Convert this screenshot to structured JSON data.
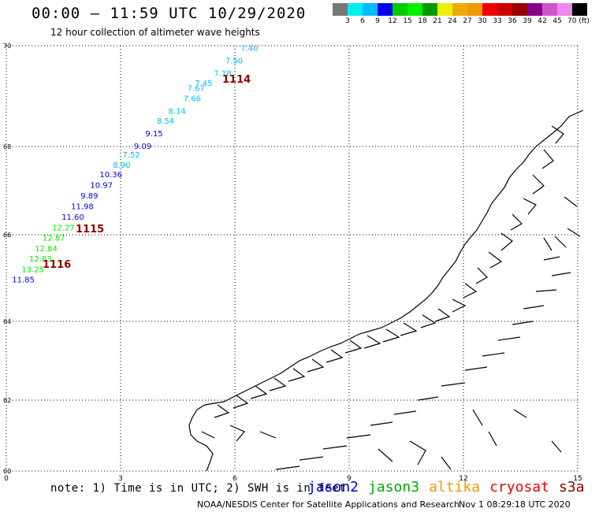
{
  "header": {
    "title": "00:00 – 11:59 UTC 10/29/2020",
    "subtitle": "12 hour collection of altimeter wave heights"
  },
  "colorbar": {
    "colors": [
      "#777777",
      "#00eeee",
      "#00bbff",
      "#0000ee",
      "#00cc00",
      "#00ee00",
      "#009900",
      "#eeee00",
      "#eeaa00",
      "#ee9900",
      "#ee0000",
      "#cc0000",
      "#990000",
      "#880088",
      "#cc55cc",
      "#ee88ee",
      "#000000"
    ],
    "labels": [
      "3",
      "6",
      "9",
      "12",
      "15",
      "18",
      "21",
      "24",
      "27",
      "30",
      "33",
      "36",
      "39",
      "42",
      "45",
      "70 (ft)"
    ]
  },
  "axes": {
    "x_ticks": [
      "0",
      "3",
      "6",
      "9",
      "12",
      "15"
    ],
    "y_ticks": [
      "70",
      "68",
      "66",
      "64",
      "62",
      "60"
    ]
  },
  "tracks": [
    {
      "label": "1114",
      "color": "#8b0000"
    },
    {
      "label": "1115",
      "color": "#8b0000"
    },
    {
      "label": "1116",
      "color": "#8b0000"
    }
  ],
  "wave_points": [
    {
      "v": "7.40",
      "lon": 6.15,
      "lat": 69.9,
      "color": "#00bbff"
    },
    {
      "v": "7.50",
      "lon": 5.75,
      "lat": 69.65,
      "color": "#00bbff"
    },
    {
      "v": "7.18",
      "lon": 5.45,
      "lat": 69.4,
      "color": "#00bbff"
    },
    {
      "v": "7.45",
      "lon": 4.95,
      "lat": 69.2,
      "color": "#00bbff"
    },
    {
      "v": "7.67",
      "lon": 4.75,
      "lat": 69.1,
      "color": "#00bbff"
    },
    {
      "v": "7.66",
      "lon": 4.65,
      "lat": 68.9,
      "color": "#00bbff"
    },
    {
      "v": "8.14",
      "lon": 4.25,
      "lat": 68.65,
      "color": "#00bbff"
    },
    {
      "v": "8.54",
      "lon": 3.95,
      "lat": 68.45,
      "color": "#00bbff"
    },
    {
      "v": "9.15",
      "lon": 3.65,
      "lat": 68.2,
      "color": "#0000ee"
    },
    {
      "v": "9.09",
      "lon": 3.35,
      "lat": 67.95,
      "color": "#0000ee"
    },
    {
      "v": "7.52",
      "lon": 3.05,
      "lat": 67.75,
      "color": "#00bbff"
    },
    {
      "v": "8.90",
      "lon": 2.8,
      "lat": 67.52,
      "color": "#00bbff"
    },
    {
      "v": "10.36",
      "lon": 2.45,
      "lat": 67.3,
      "color": "#0000ee"
    },
    {
      "v": "10.97",
      "lon": 2.2,
      "lat": 67.06,
      "color": "#0000ee"
    },
    {
      "v": "9.89",
      "lon": 1.95,
      "lat": 66.82,
      "color": "#0000ee"
    },
    {
      "v": "11.98",
      "lon": 1.7,
      "lat": 66.58,
      "color": "#0000ee"
    },
    {
      "v": "11.60",
      "lon": 1.45,
      "lat": 66.34,
      "color": "#0000ee"
    },
    {
      "v": "12.27",
      "lon": 1.2,
      "lat": 66.1,
      "color": "#00ee00"
    },
    {
      "v": "12.87",
      "lon": 0.95,
      "lat": 65.86,
      "color": "#00ee00"
    },
    {
      "v": "12.84",
      "lon": 0.75,
      "lat": 65.62,
      "color": "#00ee00"
    },
    {
      "v": "12.83",
      "lon": 0.6,
      "lat": 65.38,
      "color": "#00ee00"
    },
    {
      "v": "13.25",
      "lon": 0.4,
      "lat": 65.14,
      "color": "#00ee00"
    },
    {
      "v": "11.85",
      "lon": 0.15,
      "lat": 64.9,
      "color": "#0000ee"
    }
  ],
  "footer": {
    "note": "note: 1) Time is in UTC; 2) SWH is in feet",
    "satellites": [
      {
        "name": "jason2",
        "color": "#0000cc"
      },
      {
        "name": "jason3",
        "color": "#00aa00"
      },
      {
        "name": "altika",
        "color": "#ee9900"
      },
      {
        "name": "cryosat",
        "color": "#ee0000"
      },
      {
        "name": "s3a",
        "color": "#8b0000"
      }
    ],
    "credit": "NOAA/NESDIS Center for Satellite Applications and Research",
    "date": "Nov  1 08:29:18 UTC 2020"
  }
}
